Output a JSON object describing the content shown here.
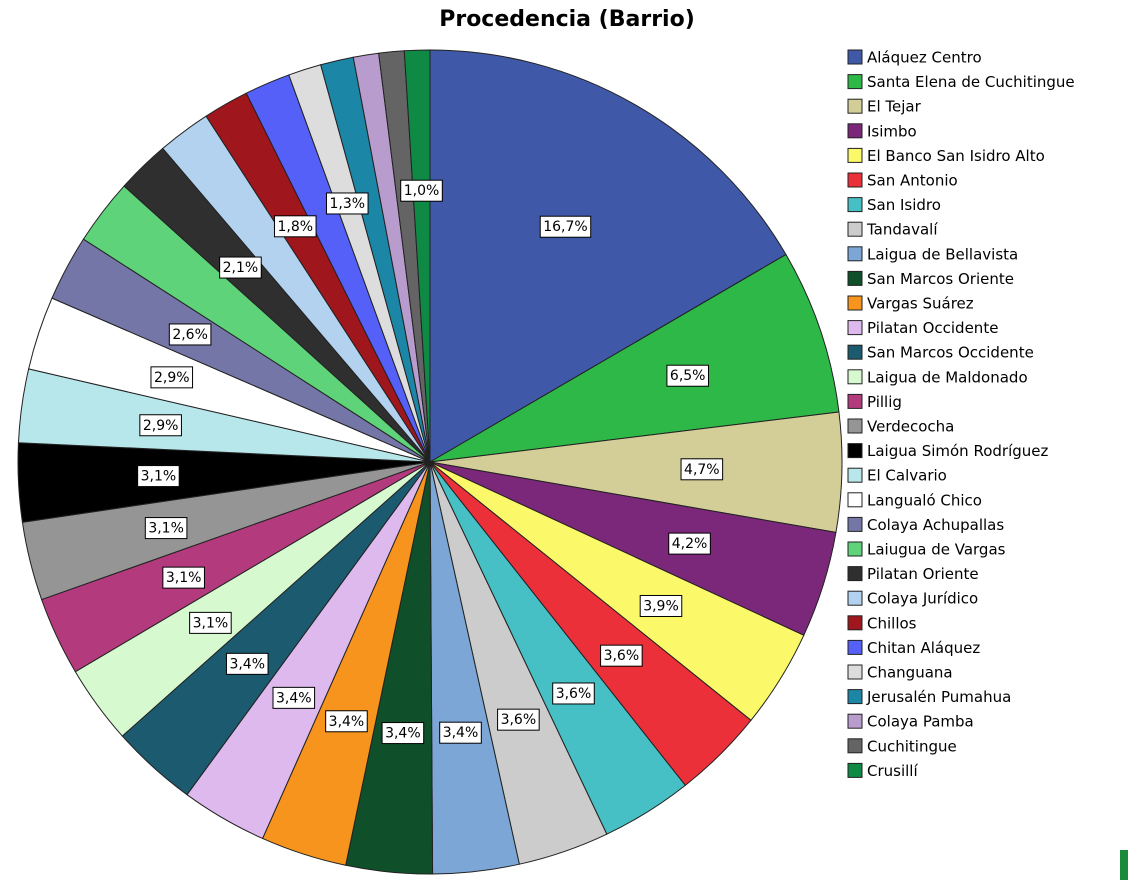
{
  "chart_data": {
    "type": "pie",
    "title": "Procedencia (Barrio)",
    "categories": [
      "Aláquez Centro",
      "Santa Elena de Cuchitingue",
      "El Tejar",
      "Isimbo",
      "El Banco San Isidro Alto",
      "San Antonio",
      "San Isidro",
      "Tandavalí",
      "Laigua de Bellavista",
      "San Marcos Oriente",
      "Vargas Suárez",
      "Pilatan Occidente",
      "San Marcos Occidente",
      "Laigua de Maldonado",
      "Pillig",
      "Verdecocha",
      "Laigua Simón Rodríguez",
      "El Calvario",
      "Langualó Chico",
      "Colaya Achupallas",
      "Laiugua de Vargas",
      "Pilatan Oriente",
      "Colaya Jurídico",
      "Chillos",
      "Chitan Aláquez",
      "Changuana",
      "Jerusalén Pumahua",
      "Colaya Pamba",
      "Cuchitingue",
      "Crusillí"
    ],
    "values": [
      16.7,
      6.5,
      4.7,
      4.2,
      3.9,
      3.6,
      3.6,
      3.6,
      3.4,
      3.4,
      3.4,
      3.4,
      3.4,
      3.1,
      3.1,
      3.1,
      3.1,
      2.9,
      2.9,
      2.6,
      2.6,
      2.1,
      2.1,
      1.8,
      1.8,
      1.3,
      1.3,
      1.0,
      1.0,
      1.0
    ],
    "value_labels": [
      "16,7%",
      "6,5%",
      "4,7%",
      "4,2%",
      "3,9%",
      "3,6%",
      "3,6%",
      "3,6%",
      "3,4%",
      "3,4%",
      "3,4%",
      "3,4%",
      "3,4%",
      "3,1%",
      "3,1%",
      "3,1%",
      "3,1%",
      "2,9%",
      "2,9%",
      "2,6%",
      null,
      "2,1%",
      null,
      "1,8%",
      null,
      "1,3%",
      null,
      null,
      null,
      "1,0%"
    ],
    "colors": [
      "#3f58a8",
      "#2eb848",
      "#d3ce97",
      "#7b277a",
      "#fbf969",
      "#ec303a",
      "#47c0c5",
      "#cccccc",
      "#7ba6d6",
      "#0f4f2a",
      "#f7941d",
      "#ddb9ee",
      "#1b5a6f",
      "#d7f9d0",
      "#b33a7d",
      "#959595",
      "#000000",
      "#b7e6eb",
      "#ffffff",
      "#7476a8",
      "#5fd37a",
      "#2f2f2f",
      "#b3d2ef",
      "#a0161d",
      "#5460f8",
      "#dddddd",
      "#1c86a6",
      "#b79ccd",
      "#646464",
      "#0f8a45"
    ],
    "legend": "right"
  }
}
